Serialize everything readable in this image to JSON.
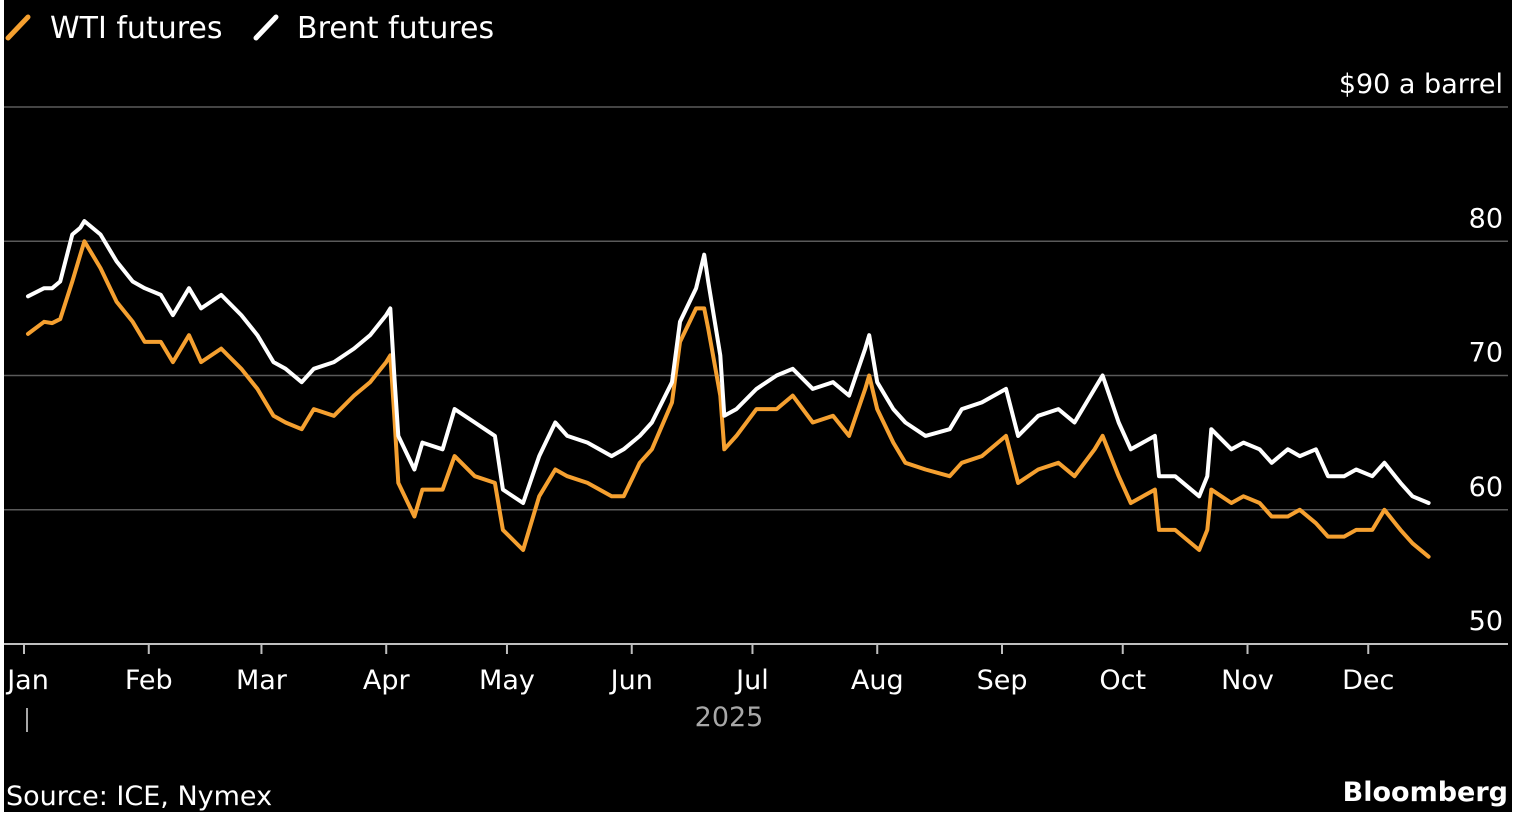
{
  "chart_data": {
    "type": "line",
    "title": "",
    "xlabel": "2025",
    "ylabel": "",
    "y_unit_label": "$90 a barrel",
    "yticks": [
      {
        "value": 90,
        "label": "$90 a barrel"
      },
      {
        "value": 80,
        "label": "80"
      },
      {
        "value": 70,
        "label": "70"
      },
      {
        "value": 60,
        "label": "60"
      },
      {
        "value": 50,
        "label": "50"
      }
    ],
    "ylim": [
      50,
      90
    ],
    "xlim": [
      "2025-01-01",
      "2025-12-31"
    ],
    "months": [
      "Jan",
      "Feb",
      "Mar",
      "Apr",
      "May",
      "Jun",
      "Jul",
      "Aug",
      "Sep",
      "Oct",
      "Nov",
      "Dec"
    ],
    "legend_position": "top-left",
    "grid": true,
    "colors": {
      "background": "#000000",
      "wti": "#f5a030",
      "brent": "#ffffff",
      "grid": "#5a5a5a"
    },
    "series": [
      {
        "name": "WTI futures",
        "color": "#f5a030",
        "points": [
          [
            "2025-01-02",
            73.1
          ],
          [
            "2025-01-06",
            74.0
          ],
          [
            "2025-01-08",
            73.9
          ],
          [
            "2025-01-10",
            74.2
          ],
          [
            "2025-01-13",
            77.0
          ],
          [
            "2025-01-15",
            79.0
          ],
          [
            "2025-01-16",
            80.0
          ],
          [
            "2025-01-20",
            78.0
          ],
          [
            "2025-01-24",
            75.5
          ],
          [
            "2025-01-28",
            74.0
          ],
          [
            "2025-01-31",
            72.5
          ],
          [
            "2025-02-04",
            72.5
          ],
          [
            "2025-02-07",
            71.0
          ],
          [
            "2025-02-11",
            73.0
          ],
          [
            "2025-02-14",
            71.0
          ],
          [
            "2025-02-19",
            72.0
          ],
          [
            "2025-02-24",
            70.5
          ],
          [
            "2025-02-28",
            69.0
          ],
          [
            "2025-03-04",
            67.0
          ],
          [
            "2025-03-07",
            66.5
          ],
          [
            "2025-03-11",
            66.0
          ],
          [
            "2025-03-14",
            67.5
          ],
          [
            "2025-03-19",
            67.0
          ],
          [
            "2025-03-24",
            68.5
          ],
          [
            "2025-03-28",
            69.5
          ],
          [
            "2025-04-01",
            71.0
          ],
          [
            "2025-04-02",
            71.5
          ],
          [
            "2025-04-03",
            67.0
          ],
          [
            "2025-04-04",
            62.0
          ],
          [
            "2025-04-08",
            59.5
          ],
          [
            "2025-04-10",
            61.5
          ],
          [
            "2025-04-15",
            61.5
          ],
          [
            "2025-04-18",
            64.0
          ],
          [
            "2025-04-23",
            62.5
          ],
          [
            "2025-04-28",
            62.0
          ],
          [
            "2025-04-30",
            58.5
          ],
          [
            "2025-05-05",
            57.0
          ],
          [
            "2025-05-09",
            61.0
          ],
          [
            "2025-05-13",
            63.0
          ],
          [
            "2025-05-16",
            62.5
          ],
          [
            "2025-05-21",
            62.0
          ],
          [
            "2025-05-27",
            61.0
          ],
          [
            "2025-05-30",
            61.0
          ],
          [
            "2025-06-03",
            63.5
          ],
          [
            "2025-06-06",
            64.5
          ],
          [
            "2025-06-11",
            68.0
          ],
          [
            "2025-06-13",
            72.5
          ],
          [
            "2025-06-17",
            75.0
          ],
          [
            "2025-06-19",
            75.0
          ],
          [
            "2025-06-20",
            73.5
          ],
          [
            "2025-06-23",
            68.5
          ],
          [
            "2025-06-24",
            64.5
          ],
          [
            "2025-06-27",
            65.5
          ],
          [
            "2025-07-02",
            67.5
          ],
          [
            "2025-07-07",
            67.5
          ],
          [
            "2025-07-11",
            68.5
          ],
          [
            "2025-07-16",
            66.5
          ],
          [
            "2025-07-21",
            67.0
          ],
          [
            "2025-07-25",
            65.5
          ],
          [
            "2025-07-29",
            69.0
          ],
          [
            "2025-07-30",
            70.0
          ],
          [
            "2025-08-01",
            67.5
          ],
          [
            "2025-08-05",
            65.0
          ],
          [
            "2025-08-08",
            63.5
          ],
          [
            "2025-08-13",
            63.0
          ],
          [
            "2025-08-19",
            62.5
          ],
          [
            "2025-08-22",
            63.5
          ],
          [
            "2025-08-27",
            64.0
          ],
          [
            "2025-09-02",
            65.5
          ],
          [
            "2025-09-05",
            62.0
          ],
          [
            "2025-09-10",
            63.0
          ],
          [
            "2025-09-15",
            63.5
          ],
          [
            "2025-09-19",
            62.5
          ],
          [
            "2025-09-24",
            64.5
          ],
          [
            "2025-09-26",
            65.5
          ],
          [
            "2025-09-30",
            62.5
          ],
          [
            "2025-10-03",
            60.5
          ],
          [
            "2025-10-09",
            61.5
          ],
          [
            "2025-10-10",
            58.5
          ],
          [
            "2025-10-14",
            58.5
          ],
          [
            "2025-10-20",
            57.0
          ],
          [
            "2025-10-22",
            58.5
          ],
          [
            "2025-10-23",
            61.5
          ],
          [
            "2025-10-28",
            60.5
          ],
          [
            "2025-10-31",
            61.0
          ],
          [
            "2025-11-04",
            60.5
          ],
          [
            "2025-11-07",
            59.5
          ],
          [
            "2025-11-11",
            59.5
          ],
          [
            "2025-11-14",
            60.0
          ],
          [
            "2025-11-18",
            59.0
          ],
          [
            "2025-11-21",
            58.0
          ],
          [
            "2025-11-25",
            58.0
          ],
          [
            "2025-11-28",
            58.5
          ],
          [
            "2025-12-02",
            58.5
          ],
          [
            "2025-12-05",
            60.0
          ],
          [
            "2025-12-09",
            58.5
          ],
          [
            "2025-12-12",
            57.5
          ],
          [
            "2025-12-16",
            56.5
          ]
        ]
      },
      {
        "name": "Brent futures",
        "color": "#ffffff",
        "points": [
          [
            "2025-01-02",
            75.9
          ],
          [
            "2025-01-06",
            76.5
          ],
          [
            "2025-01-08",
            76.5
          ],
          [
            "2025-01-10",
            77.0
          ],
          [
            "2025-01-13",
            80.5
          ],
          [
            "2025-01-15",
            81.0
          ],
          [
            "2025-01-16",
            81.5
          ],
          [
            "2025-01-20",
            80.5
          ],
          [
            "2025-01-24",
            78.5
          ],
          [
            "2025-01-28",
            77.0
          ],
          [
            "2025-01-31",
            76.5
          ],
          [
            "2025-02-04",
            76.0
          ],
          [
            "2025-02-07",
            74.5
          ],
          [
            "2025-02-11",
            76.5
          ],
          [
            "2025-02-14",
            75.0
          ],
          [
            "2025-02-19",
            76.0
          ],
          [
            "2025-02-24",
            74.5
          ],
          [
            "2025-02-28",
            73.0
          ],
          [
            "2025-03-04",
            71.0
          ],
          [
            "2025-03-07",
            70.5
          ],
          [
            "2025-03-11",
            69.5
          ],
          [
            "2025-03-14",
            70.5
          ],
          [
            "2025-03-19",
            71.0
          ],
          [
            "2025-03-24",
            72.0
          ],
          [
            "2025-03-28",
            73.0
          ],
          [
            "2025-04-01",
            74.5
          ],
          [
            "2025-04-02",
            75.0
          ],
          [
            "2025-04-03",
            70.0
          ],
          [
            "2025-04-04",
            65.5
          ],
          [
            "2025-04-08",
            63.0
          ],
          [
            "2025-04-10",
            65.0
          ],
          [
            "2025-04-15",
            64.5
          ],
          [
            "2025-04-18",
            67.5
          ],
          [
            "2025-04-23",
            66.5
          ],
          [
            "2025-04-28",
            65.5
          ],
          [
            "2025-04-30",
            61.5
          ],
          [
            "2025-05-05",
            60.5
          ],
          [
            "2025-05-09",
            64.0
          ],
          [
            "2025-05-13",
            66.5
          ],
          [
            "2025-05-16",
            65.5
          ],
          [
            "2025-05-21",
            65.0
          ],
          [
            "2025-05-27",
            64.0
          ],
          [
            "2025-05-30",
            64.5
          ],
          [
            "2025-06-03",
            65.5
          ],
          [
            "2025-06-06",
            66.5
          ],
          [
            "2025-06-11",
            69.5
          ],
          [
            "2025-06-13",
            74.0
          ],
          [
            "2025-06-17",
            76.5
          ],
          [
            "2025-06-19",
            79.0
          ],
          [
            "2025-06-20",
            77.0
          ],
          [
            "2025-06-23",
            71.5
          ],
          [
            "2025-06-24",
            67.0
          ],
          [
            "2025-06-27",
            67.5
          ],
          [
            "2025-07-02",
            69.0
          ],
          [
            "2025-07-07",
            70.0
          ],
          [
            "2025-07-11",
            70.5
          ],
          [
            "2025-07-16",
            69.0
          ],
          [
            "2025-07-21",
            69.5
          ],
          [
            "2025-07-25",
            68.5
          ],
          [
            "2025-07-29",
            72.0
          ],
          [
            "2025-07-30",
            73.0
          ],
          [
            "2025-08-01",
            69.5
          ],
          [
            "2025-08-05",
            67.5
          ],
          [
            "2025-08-08",
            66.5
          ],
          [
            "2025-08-13",
            65.5
          ],
          [
            "2025-08-19",
            66.0
          ],
          [
            "2025-08-22",
            67.5
          ],
          [
            "2025-08-27",
            68.0
          ],
          [
            "2025-09-02",
            69.0
          ],
          [
            "2025-09-05",
            65.5
          ],
          [
            "2025-09-10",
            67.0
          ],
          [
            "2025-09-15",
            67.5
          ],
          [
            "2025-09-19",
            66.5
          ],
          [
            "2025-09-24",
            69.0
          ],
          [
            "2025-09-26",
            70.0
          ],
          [
            "2025-09-30",
            66.5
          ],
          [
            "2025-10-03",
            64.5
          ],
          [
            "2025-10-09",
            65.5
          ],
          [
            "2025-10-10",
            62.5
          ],
          [
            "2025-10-14",
            62.5
          ],
          [
            "2025-10-20",
            61.0
          ],
          [
            "2025-10-22",
            62.5
          ],
          [
            "2025-10-23",
            66.0
          ],
          [
            "2025-10-28",
            64.5
          ],
          [
            "2025-10-31",
            65.0
          ],
          [
            "2025-11-04",
            64.5
          ],
          [
            "2025-11-07",
            63.5
          ],
          [
            "2025-11-11",
            64.5
          ],
          [
            "2025-11-14",
            64.0
          ],
          [
            "2025-11-18",
            64.5
          ],
          [
            "2025-11-21",
            62.5
          ],
          [
            "2025-11-25",
            62.5
          ],
          [
            "2025-11-28",
            63.0
          ],
          [
            "2025-12-02",
            62.5
          ],
          [
            "2025-12-05",
            63.5
          ],
          [
            "2025-12-09",
            62.0
          ],
          [
            "2025-12-12",
            61.0
          ],
          [
            "2025-12-16",
            60.5
          ]
        ]
      }
    ]
  },
  "footer": {
    "source": "Source: ICE, Nymex",
    "brand": "Bloomberg"
  }
}
